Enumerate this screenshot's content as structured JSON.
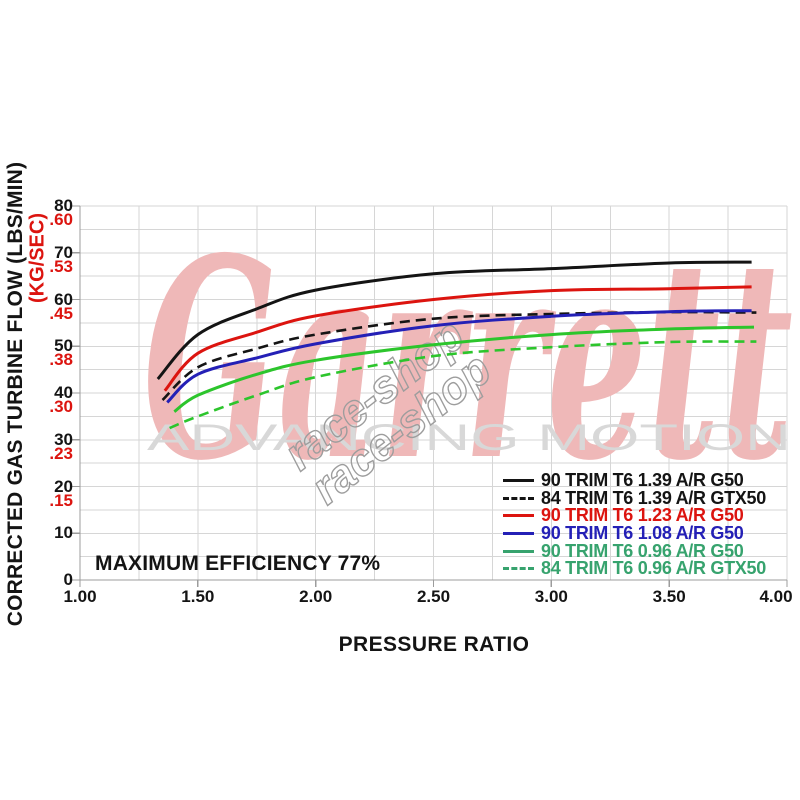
{
  "watermarks": {
    "brand": "Garrett",
    "brand_color": "#efb8b8",
    "tagline": "ADVANCING MOTION",
    "tagline_color": "#d8d8d8",
    "shop": "race-shop",
    "shop_color": "#9d9d9d"
  },
  "chart_data": {
    "type": "line",
    "title": "",
    "xlabel": "PRESSURE RATIO",
    "ylabel_lbs": "CORRECTED GAS TURBINE FLOW (LBS/MIN)",
    "ylabel_kg": "(KG/SEC)",
    "annotation": "MAXIMUM EFFICIENCY 77%",
    "xlim": [
      1.0,
      4.0
    ],
    "ylim": [
      0,
      80
    ],
    "x_minor_step": 0.25,
    "x_major_step": 0.5,
    "y_minor_step": 5,
    "y_major_step": 10,
    "grid": true,
    "legend_position": "inside-bottom-right",
    "colors": {
      "grid": "#d6d6d6",
      "axis": "#9c9c9c",
      "black": "#141414",
      "red": "#dc140f",
      "blue": "#2420b6",
      "green_curve": "#2cc52c",
      "green_legend": "#37a36e"
    },
    "x_ticks": [
      {
        "label": "1.00",
        "value": 1.0
      },
      {
        "label": "1.50",
        "value": 1.5
      },
      {
        "label": "2.00",
        "value": 2.0
      },
      {
        "label": "2.50",
        "value": 2.5
      },
      {
        "label": "3.00",
        "value": 3.0
      },
      {
        "label": "3.50",
        "value": 3.5
      },
      {
        "label": "4.00",
        "value": 4.0
      }
    ],
    "y_ticks_lbs": [
      {
        "label": "0",
        "value": 0
      },
      {
        "label": "10",
        "value": 10
      },
      {
        "label": "20",
        "value": 20
      },
      {
        "label": "30",
        "value": 30
      },
      {
        "label": "40",
        "value": 40
      },
      {
        "label": "50",
        "value": 50
      },
      {
        "label": "60",
        "value": 60
      },
      {
        "label": "70",
        "value": 70
      },
      {
        "label": "80",
        "value": 80
      }
    ],
    "y_ticks_kg": [
      {
        "label": ".15",
        "value": 17
      },
      {
        "label": ".23",
        "value": 27
      },
      {
        "label": ".30",
        "value": 37
      },
      {
        "label": ".38",
        "value": 47
      },
      {
        "label": ".45",
        "value": 57
      },
      {
        "label": ".53",
        "value": 67
      },
      {
        "label": ".60",
        "value": 77
      }
    ],
    "series": [
      {
        "name": "90 TRIM T6 1.39 A/R G50",
        "color": "#141414",
        "style": "solid",
        "points": [
          [
            1.33,
            43
          ],
          [
            1.5,
            52.5
          ],
          [
            1.75,
            58
          ],
          [
            2.0,
            62
          ],
          [
            2.5,
            65.5
          ],
          [
            3.0,
            66.6
          ],
          [
            3.5,
            67.8
          ],
          [
            3.85,
            68
          ]
        ]
      },
      {
        "name": "84 TRIM T6 1.39 A/R GTX50",
        "color": "#141414",
        "style": "dashed",
        "points": [
          [
            1.35,
            38.5
          ],
          [
            1.5,
            45.5
          ],
          [
            1.75,
            49.5
          ],
          [
            2.0,
            52.5
          ],
          [
            2.5,
            55.9
          ],
          [
            3.0,
            56.9
          ],
          [
            3.5,
            57.3
          ],
          [
            3.87,
            57.2
          ]
        ]
      },
      {
        "name": "90 TRIM T6 1.23 A/R G50",
        "color": "#dc140f",
        "style": "solid",
        "points": [
          [
            1.36,
            40.5
          ],
          [
            1.5,
            48.5
          ],
          [
            1.75,
            53
          ],
          [
            2.0,
            56.5
          ],
          [
            2.5,
            60
          ],
          [
            3.0,
            61.9
          ],
          [
            3.5,
            62.3
          ],
          [
            3.85,
            62.7
          ]
        ]
      },
      {
        "name": "90 TRIM T6 1.08 A/R G50",
        "color": "#2420b6",
        "style": "solid",
        "points": [
          [
            1.37,
            38
          ],
          [
            1.5,
            44
          ],
          [
            1.75,
            47.5
          ],
          [
            2.0,
            50.5
          ],
          [
            2.5,
            54.4
          ],
          [
            3.0,
            56.4
          ],
          [
            3.5,
            57.4
          ],
          [
            3.85,
            57.6
          ]
        ]
      },
      {
        "name": "90 TRIM T6 0.96 A/R G50",
        "color": "#2cc52c",
        "style": "solid",
        "points": [
          [
            1.4,
            36
          ],
          [
            1.5,
            39.5
          ],
          [
            1.75,
            44
          ],
          [
            2.0,
            47
          ],
          [
            2.5,
            50.3
          ],
          [
            3.0,
            52.5
          ],
          [
            3.5,
            53.7
          ],
          [
            3.86,
            54.1
          ]
        ]
      },
      {
        "name": "84 TRIM T6 0.96 A/R GTX50",
        "color": "#2cc52c",
        "style": "dashed",
        "points": [
          [
            1.38,
            32.5
          ],
          [
            1.5,
            35
          ],
          [
            1.75,
            39.5
          ],
          [
            2.0,
            43.4
          ],
          [
            2.5,
            47.9
          ],
          [
            3.0,
            49.8
          ],
          [
            3.5,
            50.9
          ],
          [
            3.87,
            51
          ]
        ]
      }
    ]
  },
  "legend": {
    "items": [
      {
        "label": "90 TRIM T6 1.39 A/R G50",
        "color": "#141414",
        "line": "solid"
      },
      {
        "label": "84 TRIM T6 1.39 A/R GTX50",
        "color": "#141414",
        "line": "dashed"
      },
      {
        "label": "90 TRIM T6 1.23 A/R G50",
        "color": "#dc140f",
        "line": "solid"
      },
      {
        "label": "90 TRIM T6 1.08 A/R G50",
        "color": "#2420b6",
        "line": "solid"
      },
      {
        "label": "90 TRIM T6 0.96 A/R G50",
        "color": "#37a36e",
        "line": "solid"
      },
      {
        "label": "84 TRIM T6 0.96 A/R GTX50",
        "color": "#37a36e",
        "line": "dashed"
      }
    ]
  }
}
